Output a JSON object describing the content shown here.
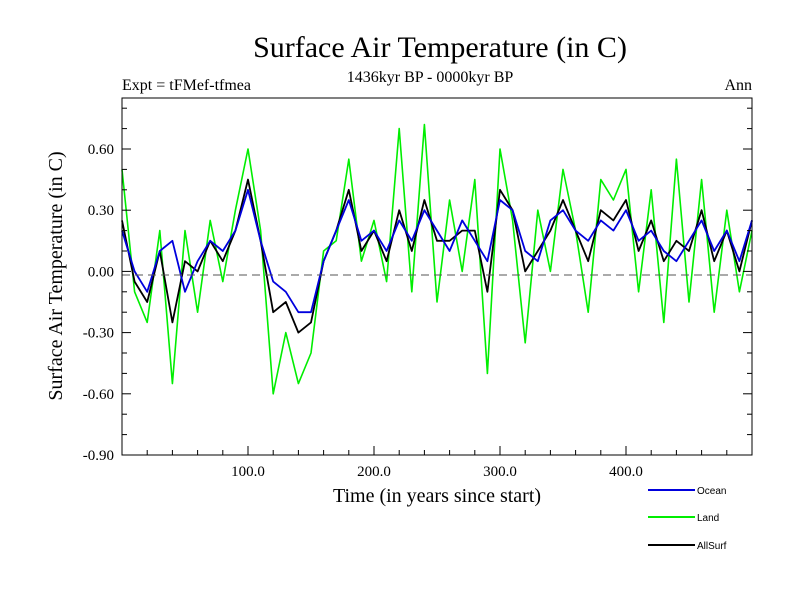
{
  "chart_data": {
    "type": "line",
    "title": "Surface Air Temperature (in C)",
    "subtitle_left": "Expt = tFMef-tfmea",
    "subtitle_center": "1436kyr BP - 0000kyr BP",
    "subtitle_right": "Ann",
    "xlabel": "Time (in years since start)",
    "ylabel": "Surface Air Temperature (in C)",
    "xlim": [
      0,
      500
    ],
    "ylim": [
      -0.9,
      0.85
    ],
    "xticks": [
      100,
      200,
      300,
      400
    ],
    "xtick_labels": [
      "100.0",
      "200.0",
      "300.0",
      "400.0"
    ],
    "yticks": [
      -0.9,
      -0.6,
      -0.3,
      0.0,
      0.3,
      0.6
    ],
    "ytick_labels": [
      "-0.90",
      "-0.60",
      "-0.30",
      "0.00",
      "0.30",
      "0.60"
    ],
    "zero_line": true,
    "grid": false,
    "legend_position": "bottom-right",
    "x": [
      0,
      10,
      20,
      30,
      40,
      50,
      60,
      70,
      80,
      90,
      100,
      110,
      120,
      130,
      140,
      150,
      160,
      170,
      180,
      190,
      200,
      210,
      220,
      230,
      240,
      250,
      260,
      270,
      280,
      290,
      300,
      310,
      320,
      330,
      340,
      350,
      360,
      370,
      380,
      390,
      400,
      410,
      420,
      430,
      440,
      450,
      460,
      470,
      480,
      490,
      500
    ],
    "series": [
      {
        "name": "Ocean",
        "color": "#0000dd",
        "values": [
          0.2,
          0.0,
          -0.1,
          0.1,
          0.15,
          -0.1,
          0.05,
          0.15,
          0.1,
          0.2,
          0.4,
          0.15,
          -0.05,
          -0.1,
          -0.2,
          -0.2,
          0.05,
          0.2,
          0.35,
          0.15,
          0.2,
          0.1,
          0.25,
          0.15,
          0.3,
          0.2,
          0.1,
          0.25,
          0.15,
          0.05,
          0.35,
          0.3,
          0.1,
          0.05,
          0.25,
          0.3,
          0.2,
          0.15,
          0.25,
          0.2,
          0.3,
          0.15,
          0.2,
          0.1,
          0.05,
          0.15,
          0.25,
          0.1,
          0.2,
          0.05,
          0.25
        ]
      },
      {
        "name": "Land",
        "color": "#00ee00",
        "values": [
          0.5,
          -0.1,
          -0.25,
          0.2,
          -0.55,
          0.2,
          -0.2,
          0.25,
          -0.05,
          0.3,
          0.6,
          0.2,
          -0.6,
          -0.3,
          -0.55,
          -0.4,
          0.1,
          0.15,
          0.55,
          0.05,
          0.25,
          -0.05,
          0.7,
          -0.1,
          0.72,
          -0.15,
          0.35,
          0.0,
          0.45,
          -0.5,
          0.6,
          0.25,
          -0.35,
          0.3,
          0.0,
          0.5,
          0.2,
          -0.2,
          0.45,
          0.35,
          0.5,
          -0.1,
          0.4,
          -0.25,
          0.55,
          -0.15,
          0.45,
          -0.2,
          0.3,
          -0.1,
          0.2
        ]
      },
      {
        "name": "AllSurf",
        "color": "#000000",
        "values": [
          0.25,
          -0.05,
          -0.15,
          0.1,
          -0.25,
          0.05,
          0.0,
          0.15,
          0.05,
          0.2,
          0.45,
          0.15,
          -0.2,
          -0.15,
          -0.3,
          -0.25,
          0.05,
          0.2,
          0.4,
          0.1,
          0.2,
          0.05,
          0.3,
          0.1,
          0.35,
          0.15,
          0.15,
          0.2,
          0.2,
          -0.1,
          0.4,
          0.3,
          0.0,
          0.1,
          0.2,
          0.35,
          0.2,
          0.05,
          0.3,
          0.25,
          0.35,
          0.1,
          0.25,
          0.05,
          0.15,
          0.1,
          0.3,
          0.05,
          0.2,
          0.0,
          0.25
        ]
      }
    ]
  }
}
